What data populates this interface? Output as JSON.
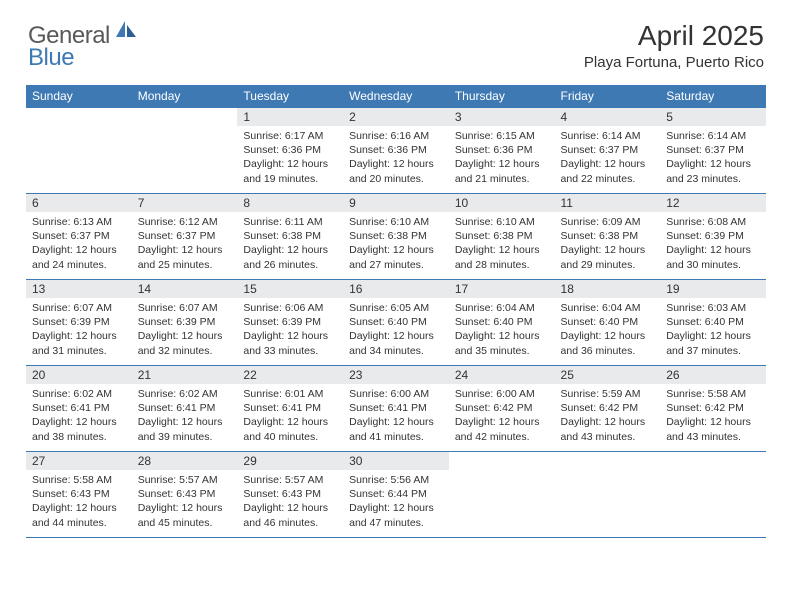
{
  "brand": {
    "word1": "General",
    "word2": "Blue"
  },
  "title": {
    "month_year": "April 2025",
    "location": "Playa Fortuna, Puerto Rico"
  },
  "colors": {
    "header_bg": "#3e79b4",
    "daynum_bg": "#e9eaeb",
    "text": "#333333",
    "logo_gray": "#58595b",
    "logo_blue": "#3e79b4"
  },
  "weekdays": [
    "Sunday",
    "Monday",
    "Tuesday",
    "Wednesday",
    "Thursday",
    "Friday",
    "Saturday"
  ],
  "first_weekday_index": 2,
  "days": [
    {
      "n": 1,
      "sunrise": "6:17 AM",
      "sunset": "6:36 PM",
      "dl_h": 12,
      "dl_m": 19
    },
    {
      "n": 2,
      "sunrise": "6:16 AM",
      "sunset": "6:36 PM",
      "dl_h": 12,
      "dl_m": 20
    },
    {
      "n": 3,
      "sunrise": "6:15 AM",
      "sunset": "6:36 PM",
      "dl_h": 12,
      "dl_m": 21
    },
    {
      "n": 4,
      "sunrise": "6:14 AM",
      "sunset": "6:37 PM",
      "dl_h": 12,
      "dl_m": 22
    },
    {
      "n": 5,
      "sunrise": "6:14 AM",
      "sunset": "6:37 PM",
      "dl_h": 12,
      "dl_m": 23
    },
    {
      "n": 6,
      "sunrise": "6:13 AM",
      "sunset": "6:37 PM",
      "dl_h": 12,
      "dl_m": 24
    },
    {
      "n": 7,
      "sunrise": "6:12 AM",
      "sunset": "6:37 PM",
      "dl_h": 12,
      "dl_m": 25
    },
    {
      "n": 8,
      "sunrise": "6:11 AM",
      "sunset": "6:38 PM",
      "dl_h": 12,
      "dl_m": 26
    },
    {
      "n": 9,
      "sunrise": "6:10 AM",
      "sunset": "6:38 PM",
      "dl_h": 12,
      "dl_m": 27
    },
    {
      "n": 10,
      "sunrise": "6:10 AM",
      "sunset": "6:38 PM",
      "dl_h": 12,
      "dl_m": 28
    },
    {
      "n": 11,
      "sunrise": "6:09 AM",
      "sunset": "6:38 PM",
      "dl_h": 12,
      "dl_m": 29
    },
    {
      "n": 12,
      "sunrise": "6:08 AM",
      "sunset": "6:39 PM",
      "dl_h": 12,
      "dl_m": 30
    },
    {
      "n": 13,
      "sunrise": "6:07 AM",
      "sunset": "6:39 PM",
      "dl_h": 12,
      "dl_m": 31
    },
    {
      "n": 14,
      "sunrise": "6:07 AM",
      "sunset": "6:39 PM",
      "dl_h": 12,
      "dl_m": 32
    },
    {
      "n": 15,
      "sunrise": "6:06 AM",
      "sunset": "6:39 PM",
      "dl_h": 12,
      "dl_m": 33
    },
    {
      "n": 16,
      "sunrise": "6:05 AM",
      "sunset": "6:40 PM",
      "dl_h": 12,
      "dl_m": 34
    },
    {
      "n": 17,
      "sunrise": "6:04 AM",
      "sunset": "6:40 PM",
      "dl_h": 12,
      "dl_m": 35
    },
    {
      "n": 18,
      "sunrise": "6:04 AM",
      "sunset": "6:40 PM",
      "dl_h": 12,
      "dl_m": 36
    },
    {
      "n": 19,
      "sunrise": "6:03 AM",
      "sunset": "6:40 PM",
      "dl_h": 12,
      "dl_m": 37
    },
    {
      "n": 20,
      "sunrise": "6:02 AM",
      "sunset": "6:41 PM",
      "dl_h": 12,
      "dl_m": 38
    },
    {
      "n": 21,
      "sunrise": "6:02 AM",
      "sunset": "6:41 PM",
      "dl_h": 12,
      "dl_m": 39
    },
    {
      "n": 22,
      "sunrise": "6:01 AM",
      "sunset": "6:41 PM",
      "dl_h": 12,
      "dl_m": 40
    },
    {
      "n": 23,
      "sunrise": "6:00 AM",
      "sunset": "6:41 PM",
      "dl_h": 12,
      "dl_m": 41
    },
    {
      "n": 24,
      "sunrise": "6:00 AM",
      "sunset": "6:42 PM",
      "dl_h": 12,
      "dl_m": 42
    },
    {
      "n": 25,
      "sunrise": "5:59 AM",
      "sunset": "6:42 PM",
      "dl_h": 12,
      "dl_m": 43
    },
    {
      "n": 26,
      "sunrise": "5:58 AM",
      "sunset": "6:42 PM",
      "dl_h": 12,
      "dl_m": 43
    },
    {
      "n": 27,
      "sunrise": "5:58 AM",
      "sunset": "6:43 PM",
      "dl_h": 12,
      "dl_m": 44
    },
    {
      "n": 28,
      "sunrise": "5:57 AM",
      "sunset": "6:43 PM",
      "dl_h": 12,
      "dl_m": 45
    },
    {
      "n": 29,
      "sunrise": "5:57 AM",
      "sunset": "6:43 PM",
      "dl_h": 12,
      "dl_m": 46
    },
    {
      "n": 30,
      "sunrise": "5:56 AM",
      "sunset": "6:44 PM",
      "dl_h": 12,
      "dl_m": 47
    }
  ]
}
